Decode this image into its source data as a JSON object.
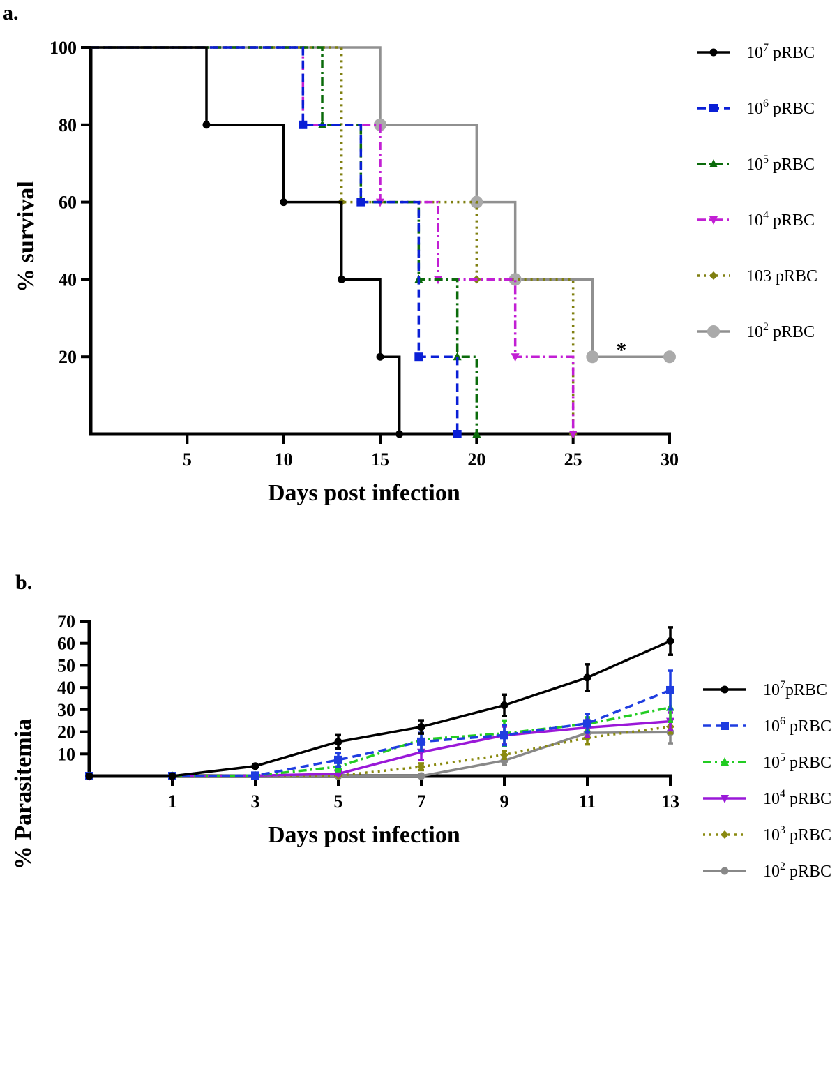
{
  "chart_data": [
    {
      "panel": "a.",
      "type": "line",
      "step": true,
      "xlabel": "Days post infection",
      "ylabel": "% survival",
      "xlim": [
        0,
        30
      ],
      "ylim": [
        0,
        100
      ],
      "xticks": [
        5,
        10,
        15,
        20,
        25,
        30
      ],
      "yticks": [
        20,
        40,
        60,
        80,
        100
      ],
      "annotation": "*",
      "series": [
        {
          "name": "10",
          "sup": "7",
          "suffix": " pRBC",
          "color": "#000000",
          "dash": "solid",
          "marker": "circle",
          "steps": [
            [
              0,
              100
            ],
            [
              6,
              80
            ],
            [
              10,
              60
            ],
            [
              13,
              40
            ],
            [
              15,
              20
            ],
            [
              16,
              0
            ]
          ]
        },
        {
          "name": "10",
          "sup": "6",
          "suffix": " pRBC",
          "color": "#0a1fd6",
          "dash": "dash",
          "marker": "square",
          "steps": [
            [
              0,
              100
            ],
            [
              11,
              80
            ],
            [
              14,
              60
            ],
            [
              17,
              20
            ],
            [
              19,
              0
            ]
          ]
        },
        {
          "name": "10",
          "sup": "5",
          "suffix": " pRBC",
          "color": "#0b6b0b",
          "dash": "dashdot",
          "marker": "triangle",
          "steps": [
            [
              0,
              100
            ],
            [
              12,
              80
            ],
            [
              14,
              60
            ],
            [
              17,
              40
            ],
            [
              19,
              20
            ],
            [
              20,
              0
            ]
          ]
        },
        {
          "name": "10",
          "sup": "4",
          "suffix": " pRBC",
          "color": "#c21fd4",
          "dash": "dashdot",
          "marker": "triangle-down",
          "steps": [
            [
              0,
              100
            ],
            [
              11,
              80
            ],
            [
              15,
              60
            ],
            [
              18,
              40
            ],
            [
              22,
              20
            ],
            [
              25,
              0
            ]
          ]
        },
        {
          "name": "103",
          "sup": "",
          "suffix": " pRBC",
          "color": "#7f7f10",
          "dash": "dot",
          "marker": "diamond",
          "steps": [
            [
              0,
              100
            ],
            [
              13,
              60
            ],
            [
              20,
              40
            ],
            [
              25,
              0
            ]
          ]
        },
        {
          "name": "10",
          "sup": "2",
          "suffix": " pRBC",
          "color": "#909090",
          "dash": "solid",
          "marker": "circle-big",
          "steps": [
            [
              0,
              100
            ],
            [
              15,
              80
            ],
            [
              20,
              60
            ],
            [
              22,
              40
            ],
            [
              26,
              20
            ],
            [
              30,
              20
            ]
          ]
        }
      ]
    },
    {
      "panel": "b.",
      "type": "line",
      "xlabel": "Days post infection",
      "ylabel": "% Parasitemia",
      "xlim": [
        -1,
        13
      ],
      "ylim": [
        0,
        70
      ],
      "xticks": [
        1,
        3,
        5,
        7,
        9,
        11,
        13
      ],
      "yticks": [
        10,
        20,
        30,
        40,
        50,
        60,
        70
      ],
      "x": [
        -1,
        1,
        3,
        5,
        7,
        9,
        11,
        13
      ],
      "series": [
        {
          "name": "10",
          "sup": "7",
          "suffix": "pRBC",
          "color": "#000000",
          "dash": "solid",
          "marker": "circle",
          "values": [
            0,
            0,
            4.5,
            15.5,
            22.2,
            32,
            44.5,
            61
          ],
          "errors": [
            0,
            0,
            0.8,
            3,
            3,
            4.8,
            6,
            6.2
          ]
        },
        {
          "name": "10",
          "sup": "6",
          "suffix": " pRBC",
          "color": "#1f3de0",
          "dash": "dash",
          "marker": "square",
          "values": [
            0,
            0,
            0.2,
            7.3,
            15.5,
            18.5,
            23.8,
            38.8
          ],
          "errors": [
            0,
            0,
            0.2,
            3,
            4,
            4.5,
            4.2,
            8.8
          ]
        },
        {
          "name": "10",
          "sup": "5",
          "suffix": " pRBC",
          "color": "#22cc22",
          "dash": "dashdot",
          "marker": "triangle",
          "values": [
            0,
            0,
            0.2,
            4.2,
            16.5,
            19.3,
            23.5,
            31
          ],
          "errors": [
            0,
            0,
            0.2,
            2,
            5,
            5.8,
            3,
            6.5
          ]
        },
        {
          "name": "10",
          "sup": "4",
          "suffix": " pRBC",
          "color": "#9a18d8",
          "dash": "solid",
          "marker": "triangle-down",
          "values": [
            0,
            0,
            0.2,
            1,
            10.8,
            18.4,
            21.9,
            24.7
          ],
          "errors": [
            0,
            0,
            0.1,
            0.5,
            3.5,
            4,
            4,
            4
          ]
        },
        {
          "name": "10",
          "sup": "3",
          "suffix": " pRBC",
          "color": "#8a8a10",
          "dash": "dot",
          "marker": "diamond",
          "values": [
            0,
            0,
            0,
            0.2,
            4.2,
            9.6,
            17.3,
            22.3
          ],
          "errors": [
            0,
            0,
            0,
            0.2,
            1.5,
            1.8,
            3,
            3
          ]
        },
        {
          "name": "10",
          "sup": "2",
          "suffix": " pRBC",
          "color": "#888888",
          "dash": "solid",
          "marker": "circle",
          "values": [
            0,
            0,
            0,
            0,
            0,
            7,
            19.5,
            19.8
          ],
          "errors": [
            0,
            0,
            0,
            0,
            0,
            2,
            1,
            5
          ]
        }
      ]
    }
  ]
}
